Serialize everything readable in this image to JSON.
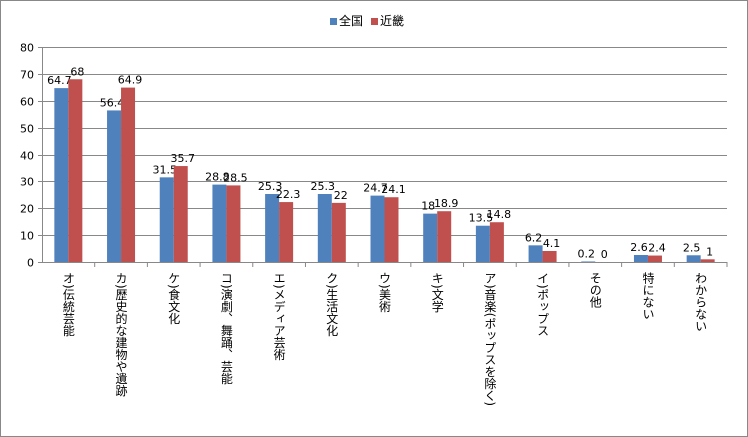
{
  "chart_data": {
    "type": "bar",
    "title": "",
    "xlabel": "",
    "ylabel": "",
    "ylim": [
      0,
      80
    ],
    "yticks": [
      "0",
      "10",
      "20",
      "30",
      "40",
      "50",
      "60",
      "70",
      "80"
    ],
    "grid": true,
    "legend_position": "top-center",
    "categories": [
      "オ)伝統芸能",
      "カ)歴史的な建物や遺跡",
      "ケ)食文化",
      "コ)演劇、舞踊、芸能",
      "エ)メディア芸術",
      "ク)生活文化",
      "ウ)美術",
      "キ)文学",
      "ア)音楽(ポップスを除く)",
      "イ)ポップス",
      "その他",
      "特にない",
      "わからない"
    ],
    "series": [
      {
        "name": "全国",
        "color": "#4F81BD",
        "values": [
          64.7,
          56.4,
          31.5,
          28.8,
          25.3,
          25.3,
          24.7,
          18,
          13.5,
          6.2,
          0.2,
          2.6,
          2.5
        ],
        "labels": [
          "64.7",
          "56.4",
          "31.5",
          "28.8",
          "25.3",
          "25.3",
          "24.7",
          "18",
          "13.5",
          "6.2",
          "0.2",
          "2.6",
          "2.5"
        ]
      },
      {
        "name": "近畿",
        "color": "#C0504D",
        "values": [
          68,
          64.9,
          35.7,
          28.5,
          22.3,
          22,
          24.1,
          18.9,
          14.8,
          4.1,
          0,
          2.4,
          1
        ],
        "labels": [
          "68",
          "64.9",
          "35.7",
          "28.5",
          "22.3",
          "22",
          "24.1",
          "18.9",
          "14.8",
          "4.1",
          "0",
          "2.4",
          "1"
        ]
      }
    ]
  }
}
